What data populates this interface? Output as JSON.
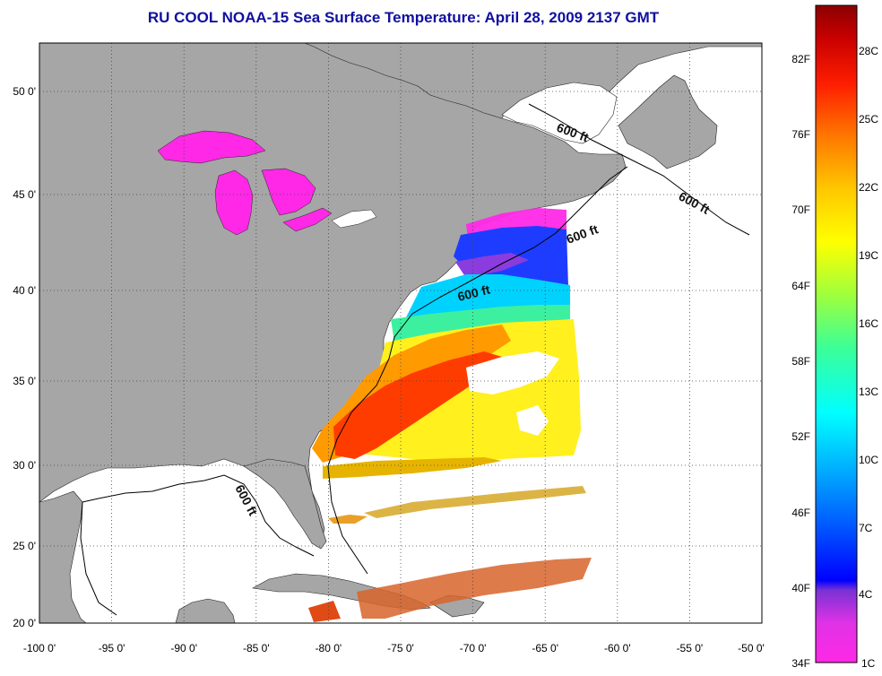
{
  "title": "RU COOL  NOAA-15  Sea Surface Temperature:  April 28, 2009 2137 GMT",
  "map": {
    "lon_range": [
      -100,
      -50
    ],
    "lat_range": [
      20,
      52.5
    ],
    "lon_ticks": [
      "-100 0'",
      "-95 0'",
      "-90 0'",
      "-85 0'",
      "-80 0'",
      "-75 0'",
      "-70 0'",
      "-65 0'",
      "-60 0'",
      "-55 0'",
      "-50 0'"
    ],
    "lat_ticks": [
      "20 0'",
      "25 0'",
      "30 0'",
      "35 0'",
      "40 0'",
      "45 0'",
      "50 0'"
    ],
    "grid": true,
    "land_color": "#a6a6a6",
    "ocean_color": "#ffffff",
    "depth_labels": [
      "600 ft",
      "600 ft",
      "600 ft",
      "600 ft",
      "600 ft"
    ]
  },
  "colorbar": {
    "orientation": "vertical",
    "placement": "right",
    "fahrenheit_labels": [
      "34F",
      "40F",
      "46F",
      "52F",
      "58F",
      "64F",
      "70F",
      "76F",
      "82F"
    ],
    "celsius_labels": [
      "1C",
      "4C",
      "7C",
      "10C",
      "13C",
      "16C",
      "19C",
      "22C",
      "25C",
      "28C"
    ],
    "gradient_colors": [
      "#ff28e6",
      "#b43ce6",
      "#6a32d8",
      "#0000ff",
      "#0a5cff",
      "#00c8ff",
      "#00ffe6",
      "#46ff8c",
      "#c8ff32",
      "#ffff00",
      "#ffc800",
      "#ff7800",
      "#ff1e00",
      "#c80000",
      "#8c0000"
    ]
  }
}
